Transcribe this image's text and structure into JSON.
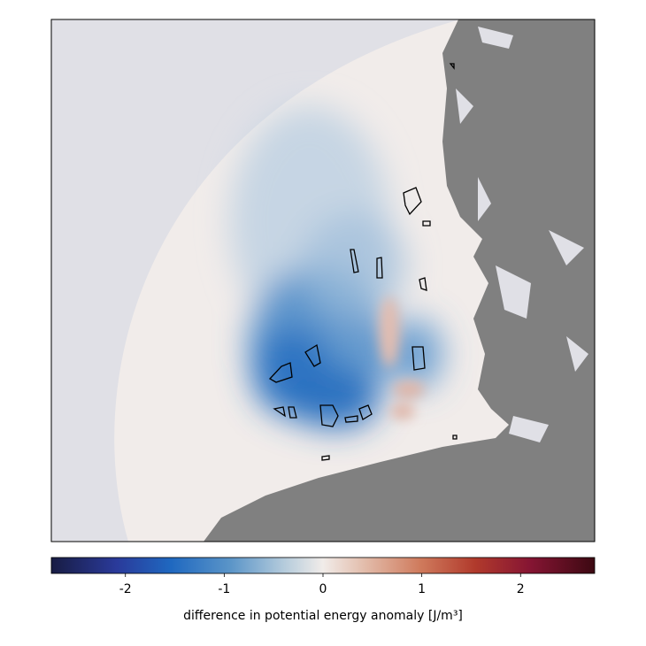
{
  "colorbar": {
    "label": "difference in potential energy anomaly [J/m³]",
    "lim": [
      -2.75,
      2.75
    ],
    "ticks": [
      -2,
      -1,
      0,
      1,
      2
    ]
  }
}
